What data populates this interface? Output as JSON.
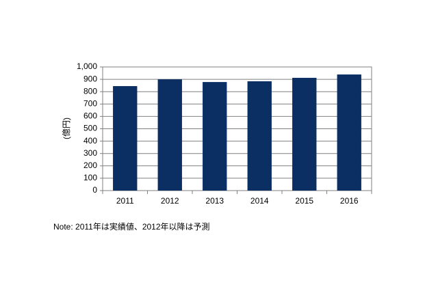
{
  "chart_data": {
    "type": "bar",
    "y_label": "(億円)",
    "categories": [
      "2011",
      "2012",
      "2013",
      "2014",
      "2015",
      "2016"
    ],
    "values": [
      845,
      900,
      878,
      884,
      912,
      939
    ],
    "color": "#0b2f63",
    "ylim": [
      0,
      1000
    ],
    "yticks": [
      0,
      100,
      200,
      300,
      400,
      500,
      600,
      700,
      800,
      900,
      {
        "value": 1000,
        "label": "1,000"
      }
    ],
    "grid": true,
    "note": "Note: 2011年は実績値、2012年以降は予測"
  }
}
